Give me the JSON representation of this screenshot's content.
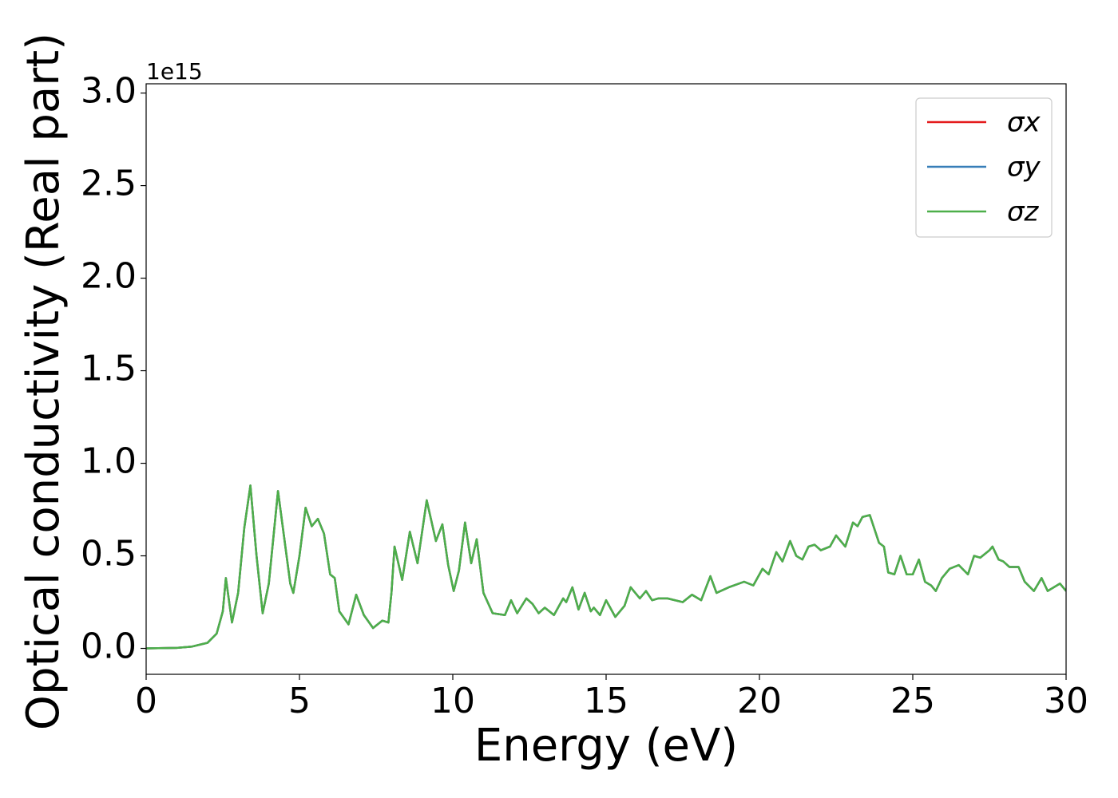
{
  "chart_data": {
    "type": "line",
    "xlabel": "Energy (eV)",
    "ylabel": "Optical conductivity (Real part)",
    "y_offset_label": "1e15",
    "xlim": [
      0,
      30
    ],
    "ylim": [
      -0.14,
      3.05
    ],
    "xticks": [
      0,
      5,
      10,
      15,
      20,
      25,
      30
    ],
    "yticks": [
      {
        "value": 0,
        "label": "0.0"
      },
      0.5,
      {
        "value": 1,
        "label": "1.0"
      },
      1.5,
      {
        "value": 2,
        "label": "2.0"
      },
      2.5,
      {
        "value": 3,
        "label": "3.0"
      }
    ],
    "grid": false,
    "legend": "upper right",
    "x": [
      0,
      1,
      1.5,
      2,
      2.3,
      2.5,
      2.6,
      2.8,
      3.0,
      3.2,
      3.4,
      3.6,
      3.8,
      4.0,
      4.3,
      4.5,
      4.7,
      4.8,
      5.0,
      5.2,
      5.4,
      5.6,
      5.8,
      6.0,
      6.15,
      6.3,
      6.6,
      6.85,
      7.1,
      7.4,
      7.7,
      7.9,
      8.0,
      8.1,
      8.35,
      8.6,
      8.85,
      9.15,
      9.45,
      9.66,
      9.85,
      10.03,
      10.2,
      10.4,
      10.6,
      10.78,
      11.0,
      11.3,
      11.7,
      11.9,
      12.1,
      12.4,
      12.6,
      12.8,
      13.0,
      13.3,
      13.6,
      13.7,
      13.9,
      14.1,
      14.3,
      14.5,
      14.6,
      14.8,
      15.0,
      15.3,
      15.6,
      15.8,
      16.1,
      16.3,
      16.5,
      16.7,
      17.0,
      17.5,
      17.8,
      18.1,
      18.4,
      18.6,
      19.0,
      19.5,
      19.8,
      20.1,
      20.3,
      20.55,
      20.75,
      21.0,
      21.2,
      21.4,
      21.6,
      21.8,
      22.0,
      22.3,
      22.5,
      22.8,
      23.05,
      23.2,
      23.36,
      23.6,
      23.9,
      24.06,
      24.2,
      24.4,
      24.6,
      24.8,
      25.0,
      25.2,
      25.4,
      25.6,
      25.75,
      25.95,
      26.2,
      26.5,
      26.8,
      27.0,
      27.2,
      27.5,
      27.6,
      27.8,
      27.95,
      28.15,
      28.45,
      28.65,
      28.95,
      29.2,
      29.4,
      29.8,
      30
    ],
    "series": [
      {
        "name": "σx",
        "color": "#e41a1c",
        "values": [
          0,
          0.003,
          0.01,
          0.03,
          0.08,
          0.2,
          0.38,
          0.14,
          0.3,
          0.65,
          0.88,
          0.5,
          0.19,
          0.35,
          0.85,
          0.6,
          0.35,
          0.3,
          0.5,
          0.76,
          0.66,
          0.7,
          0.62,
          0.4,
          0.38,
          0.2,
          0.13,
          0.29,
          0.18,
          0.11,
          0.15,
          0.14,
          0.3,
          0.55,
          0.37,
          0.63,
          0.46,
          0.8,
          0.58,
          0.67,
          0.45,
          0.31,
          0.42,
          0.68,
          0.46,
          0.59,
          0.3,
          0.19,
          0.18,
          0.26,
          0.19,
          0.27,
          0.24,
          0.19,
          0.22,
          0.18,
          0.27,
          0.25,
          0.33,
          0.21,
          0.3,
          0.2,
          0.22,
          0.18,
          0.26,
          0.17,
          0.23,
          0.33,
          0.27,
          0.31,
          0.26,
          0.27,
          0.27,
          0.25,
          0.29,
          0.26,
          0.39,
          0.3,
          0.33,
          0.36,
          0.34,
          0.43,
          0.4,
          0.52,
          0.47,
          0.58,
          0.5,
          0.48,
          0.55,
          0.56,
          0.53,
          0.55,
          0.61,
          0.55,
          0.68,
          0.66,
          0.71,
          0.72,
          0.57,
          0.55,
          0.41,
          0.4,
          0.5,
          0.4,
          0.4,
          0.48,
          0.36,
          0.34,
          0.31,
          0.38,
          0.43,
          0.45,
          0.4,
          0.5,
          0.49,
          0.53,
          0.55,
          0.48,
          0.47,
          0.44,
          0.44,
          0.36,
          0.31,
          0.38,
          0.31,
          0.35,
          0.31
        ]
      },
      {
        "name": "σy",
        "color": "#377eb8",
        "values": [
          0,
          0.003,
          0.01,
          0.03,
          0.08,
          0.2,
          0.38,
          0.14,
          0.3,
          0.65,
          0.88,
          0.5,
          0.19,
          0.35,
          0.85,
          0.6,
          0.35,
          0.3,
          0.5,
          0.76,
          0.66,
          0.7,
          0.62,
          0.4,
          0.38,
          0.2,
          0.13,
          0.29,
          0.18,
          0.11,
          0.15,
          0.14,
          0.3,
          0.55,
          0.37,
          0.63,
          0.46,
          0.8,
          0.58,
          0.67,
          0.45,
          0.31,
          0.42,
          0.68,
          0.46,
          0.59,
          0.3,
          0.19,
          0.18,
          0.26,
          0.19,
          0.27,
          0.24,
          0.19,
          0.22,
          0.18,
          0.27,
          0.25,
          0.33,
          0.21,
          0.3,
          0.2,
          0.22,
          0.18,
          0.26,
          0.17,
          0.23,
          0.33,
          0.27,
          0.31,
          0.26,
          0.27,
          0.27,
          0.25,
          0.29,
          0.26,
          0.39,
          0.3,
          0.33,
          0.36,
          0.34,
          0.43,
          0.4,
          0.52,
          0.47,
          0.58,
          0.5,
          0.48,
          0.55,
          0.56,
          0.53,
          0.55,
          0.61,
          0.55,
          0.68,
          0.66,
          0.71,
          0.72,
          0.57,
          0.55,
          0.41,
          0.4,
          0.5,
          0.4,
          0.4,
          0.48,
          0.36,
          0.34,
          0.31,
          0.38,
          0.43,
          0.45,
          0.4,
          0.5,
          0.49,
          0.53,
          0.55,
          0.48,
          0.47,
          0.44,
          0.44,
          0.36,
          0.31,
          0.38,
          0.31,
          0.35,
          0.31
        ]
      },
      {
        "name": "σz",
        "color": "#4daf4a",
        "values": [
          0,
          0.003,
          0.01,
          0.03,
          0.08,
          0.2,
          0.38,
          0.14,
          0.3,
          0.65,
          0.88,
          0.5,
          0.19,
          0.35,
          0.85,
          0.6,
          0.35,
          0.3,
          0.5,
          0.76,
          0.66,
          0.7,
          0.62,
          0.4,
          0.38,
          0.2,
          0.13,
          0.29,
          0.18,
          0.11,
          0.15,
          0.14,
          0.3,
          0.55,
          0.37,
          0.63,
          0.46,
          0.8,
          0.58,
          0.67,
          0.45,
          0.31,
          0.42,
          0.68,
          0.46,
          0.59,
          0.3,
          0.19,
          0.18,
          0.26,
          0.19,
          0.27,
          0.24,
          0.19,
          0.22,
          0.18,
          0.27,
          0.25,
          0.33,
          0.21,
          0.3,
          0.2,
          0.22,
          0.18,
          0.26,
          0.17,
          0.23,
          0.33,
          0.27,
          0.31,
          0.26,
          0.27,
          0.27,
          0.25,
          0.29,
          0.26,
          0.39,
          0.3,
          0.33,
          0.36,
          0.34,
          0.43,
          0.4,
          0.52,
          0.47,
          0.58,
          0.5,
          0.48,
          0.55,
          0.56,
          0.53,
          0.55,
          0.61,
          0.55,
          0.68,
          0.66,
          0.71,
          0.72,
          0.57,
          0.55,
          0.41,
          0.4,
          0.5,
          0.4,
          0.4,
          0.48,
          0.36,
          0.34,
          0.31,
          0.38,
          0.43,
          0.45,
          0.4,
          0.5,
          0.49,
          0.53,
          0.55,
          0.48,
          0.47,
          0.44,
          0.44,
          0.36,
          0.31,
          0.38,
          0.31,
          0.35,
          0.31
        ]
      }
    ]
  }
}
